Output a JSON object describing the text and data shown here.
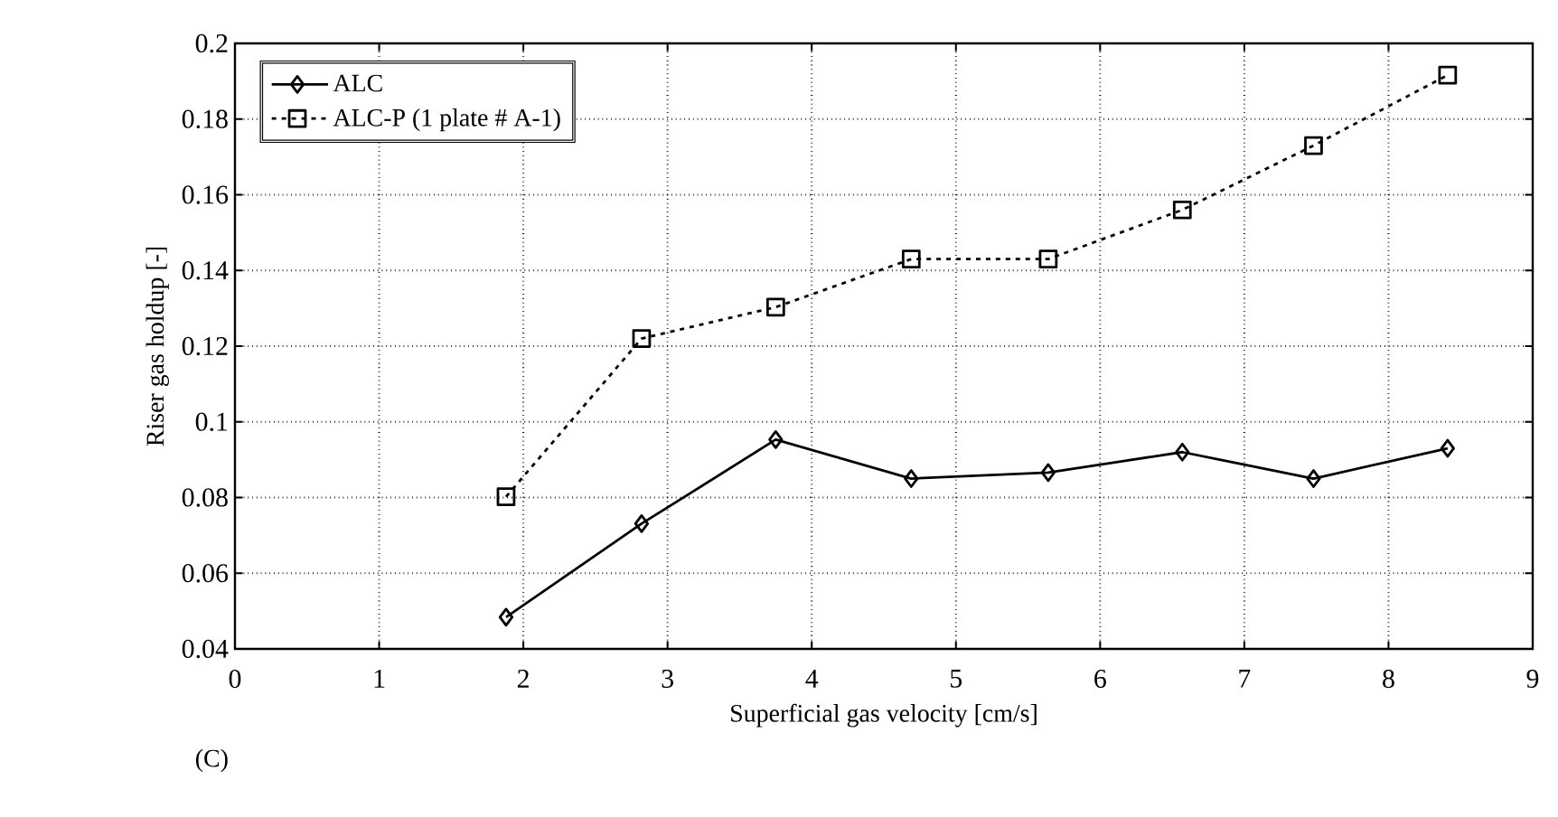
{
  "chart_data": {
    "type": "line",
    "xlabel": "Superficial gas velocity [cm/s]",
    "ylabel": "Riser gas holdup [-]",
    "annotations": [
      "(C)"
    ],
    "x": [
      1.88,
      2.82,
      3.75,
      4.69,
      5.64,
      6.57,
      7.48,
      8.41
    ],
    "series": [
      {
        "name": "ALC",
        "color": "#000000",
        "marker": "diamond",
        "line_style": "solid",
        "values": [
          0.0484,
          0.0731,
          0.0953,
          0.085,
          0.0866,
          0.092,
          0.085,
          0.093
        ]
      },
      {
        "name": "ALC-P (1 plate # A-1)",
        "color": "#000000",
        "marker": "square",
        "line_style": "dotted",
        "values": [
          0.0802,
          0.122,
          0.1303,
          0.143,
          0.143,
          0.156,
          0.173,
          0.1916
        ]
      }
    ],
    "xlim": [
      0,
      9
    ],
    "ylim": [
      0.04,
      0.2
    ],
    "xticks": [
      0,
      1,
      2,
      3,
      4,
      5,
      6,
      7,
      8,
      9
    ],
    "yticks": [
      0.04,
      0.06,
      0.08,
      0.1,
      0.12,
      0.14,
      0.16,
      0.18,
      0.2
    ],
    "grid": true,
    "legend": "top left"
  }
}
